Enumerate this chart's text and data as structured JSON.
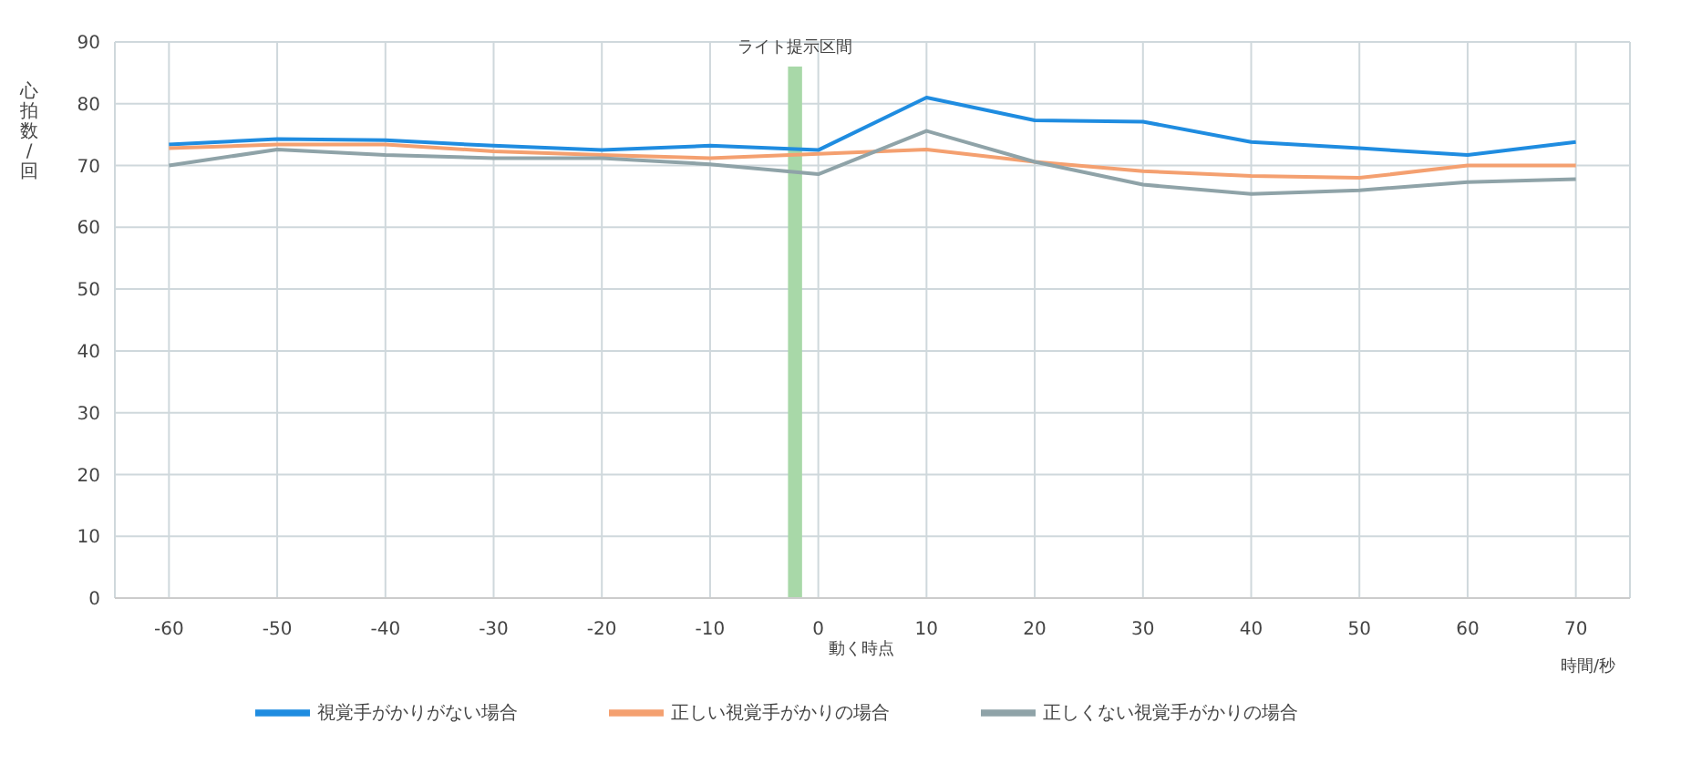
{
  "chart_data": {
    "type": "line",
    "ylabel": "心拍数/回",
    "xlabel": "時間/秒",
    "x": [
      -60,
      -50,
      -40,
      -30,
      -20,
      -10,
      0,
      10,
      20,
      30,
      40,
      50,
      60,
      70
    ],
    "xlim": [
      -65,
      75
    ],
    "xticks": [
      -60,
      -50,
      -40,
      -30,
      -20,
      -10,
      0,
      10,
      20,
      30,
      40,
      50,
      60,
      70
    ],
    "ylim": [
      0,
      90
    ],
    "yticks": [
      0,
      10,
      20,
      30,
      40,
      50,
      60,
      70,
      80,
      90
    ],
    "series": [
      {
        "name": "視覚手がかりがない場合",
        "color": "#1f8ce0",
        "values": [
          73.4,
          74.3,
          74.1,
          73.2,
          72.5,
          73.2,
          72.5,
          81.0,
          77.3,
          77.1,
          73.8,
          72.8,
          71.7,
          73.8
        ]
      },
      {
        "name": "正しい視覚手がかりの場合",
        "color": "#f4a070",
        "values": [
          72.8,
          73.4,
          73.4,
          72.3,
          71.7,
          71.2,
          71.9,
          72.6,
          70.6,
          69.1,
          68.3,
          68.0,
          70.0,
          70.0
        ]
      },
      {
        "name": "正しくない視覚手がかりの場合",
        "color": "#8fa3a8",
        "values": [
          70.0,
          72.6,
          71.7,
          71.2,
          71.2,
          70.2,
          68.6,
          75.6,
          70.6,
          66.9,
          65.4,
          66.0,
          67.3,
          67.8
        ]
      }
    ],
    "bands": [
      {
        "axis": "x",
        "from": -2.8,
        "to": -1.5,
        "label": "ライト提示区間",
        "color": "#a8d8a8"
      }
    ],
    "annotations": [
      "動く時点"
    ],
    "grid": true,
    "legend": "bottom",
    "marker": "none",
    "line_style": "solid"
  }
}
